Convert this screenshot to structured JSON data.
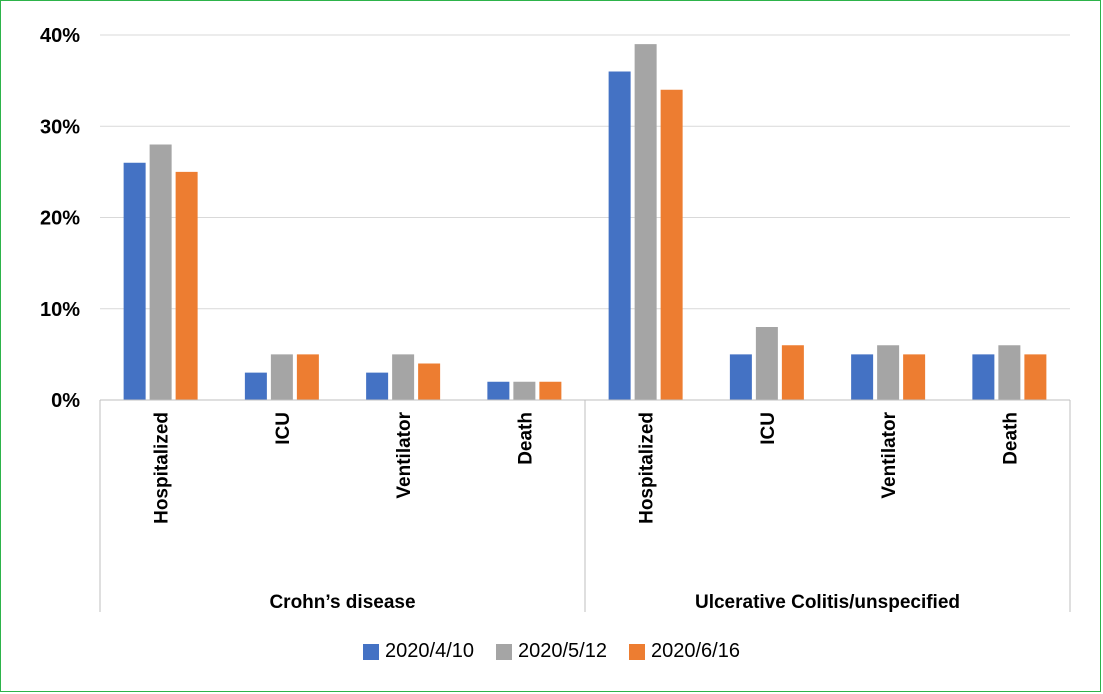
{
  "chart_data": {
    "type": "bar",
    "groups": [
      {
        "name": "Crohn’s disease",
        "categories": [
          "Hospitalized",
          "ICU",
          "Ventilator",
          "Death"
        ]
      },
      {
        "name": "Ulcerative Colitis/unspecified",
        "categories": [
          "Hospitalized",
          "ICU",
          "Ventilator",
          "Death"
        ]
      }
    ],
    "categories": [
      "Hospitalized",
      "ICU",
      "Ventilator",
      "Death",
      "Hospitalized",
      "ICU",
      "Ventilator",
      "Death"
    ],
    "series": [
      {
        "name": "2020/4/10",
        "color": "#4472c4",
        "values": [
          26,
          3,
          3,
          2,
          36,
          5,
          5,
          5
        ]
      },
      {
        "name": "2020/5/12",
        "color": "#a5a5a5",
        "values": [
          28,
          5,
          5,
          2,
          39,
          8,
          6,
          6
        ]
      },
      {
        "name": "2020/6/16",
        "color": "#ed7d31",
        "values": [
          25,
          5,
          4,
          2,
          34,
          6,
          5,
          5
        ]
      }
    ],
    "ylim": [
      0,
      40
    ],
    "yticks": [
      "0%",
      "10%",
      "20%",
      "30%",
      "40%"
    ],
    "ytick_values": [
      0,
      10,
      20,
      30,
      40
    ],
    "grid": true,
    "legend_position": "bottom"
  }
}
